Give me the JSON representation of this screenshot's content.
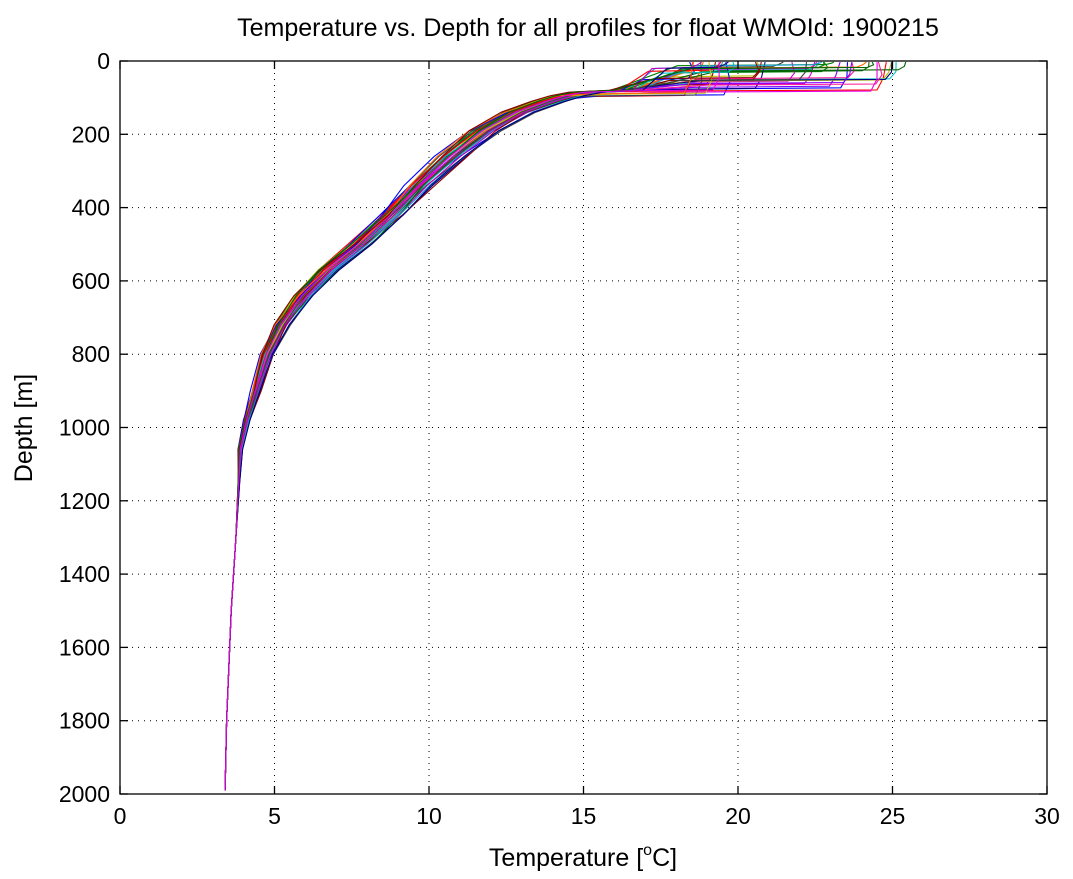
{
  "chart_data": {
    "type": "line",
    "title": "Temperature vs. Depth for all profiles for float WMOId: 1900215",
    "xlabel_main": "Temperature [",
    "xlabel_sup": "o",
    "xlabel_tail": "C]",
    "ylabel": "Depth [m]",
    "xlim": [
      0,
      30
    ],
    "ylim": [
      0,
      2000
    ],
    "y_reversed": true,
    "grid": true,
    "x_ticks": [
      0,
      5,
      10,
      15,
      20,
      25,
      30
    ],
    "y_ticks": [
      0,
      200,
      400,
      600,
      800,
      1000,
      1200,
      1400,
      1600,
      1800,
      2000
    ],
    "colors": [
      "#0000ff",
      "#008000",
      "#ff0000",
      "#00bfbf",
      "#bf00bf",
      "#bfbf00",
      "#404040",
      "#ff6600",
      "#8b0000",
      "#006400",
      "#000080",
      "#e600e6",
      "#1a9fd9",
      "#7f00ff",
      "#ff1493"
    ],
    "base_profile": [
      [
        3.4,
        1990
      ],
      [
        3.45,
        1800
      ],
      [
        3.6,
        1500
      ],
      [
        3.75,
        1300
      ],
      [
        3.85,
        1150
      ],
      [
        3.9,
        1060
      ],
      [
        4.1,
        980
      ],
      [
        4.4,
        900
      ],
      [
        4.8,
        800
      ],
      [
        5.3,
        720
      ],
      [
        6.0,
        640
      ],
      [
        6.8,
        570
      ],
      [
        7.8,
        500
      ],
      [
        8.8,
        420
      ],
      [
        9.7,
        340
      ],
      [
        10.8,
        260
      ],
      [
        11.9,
        190
      ],
      [
        13.0,
        140
      ],
      [
        14.0,
        110
      ],
      [
        14.6,
        95
      ],
      [
        15.2,
        85
      ],
      [
        16.5,
        80
      ]
    ],
    "series_count": 42,
    "mld_range": [
      8,
      95
    ],
    "surface_temp_range": [
      18.4,
      25.5
    ]
  }
}
